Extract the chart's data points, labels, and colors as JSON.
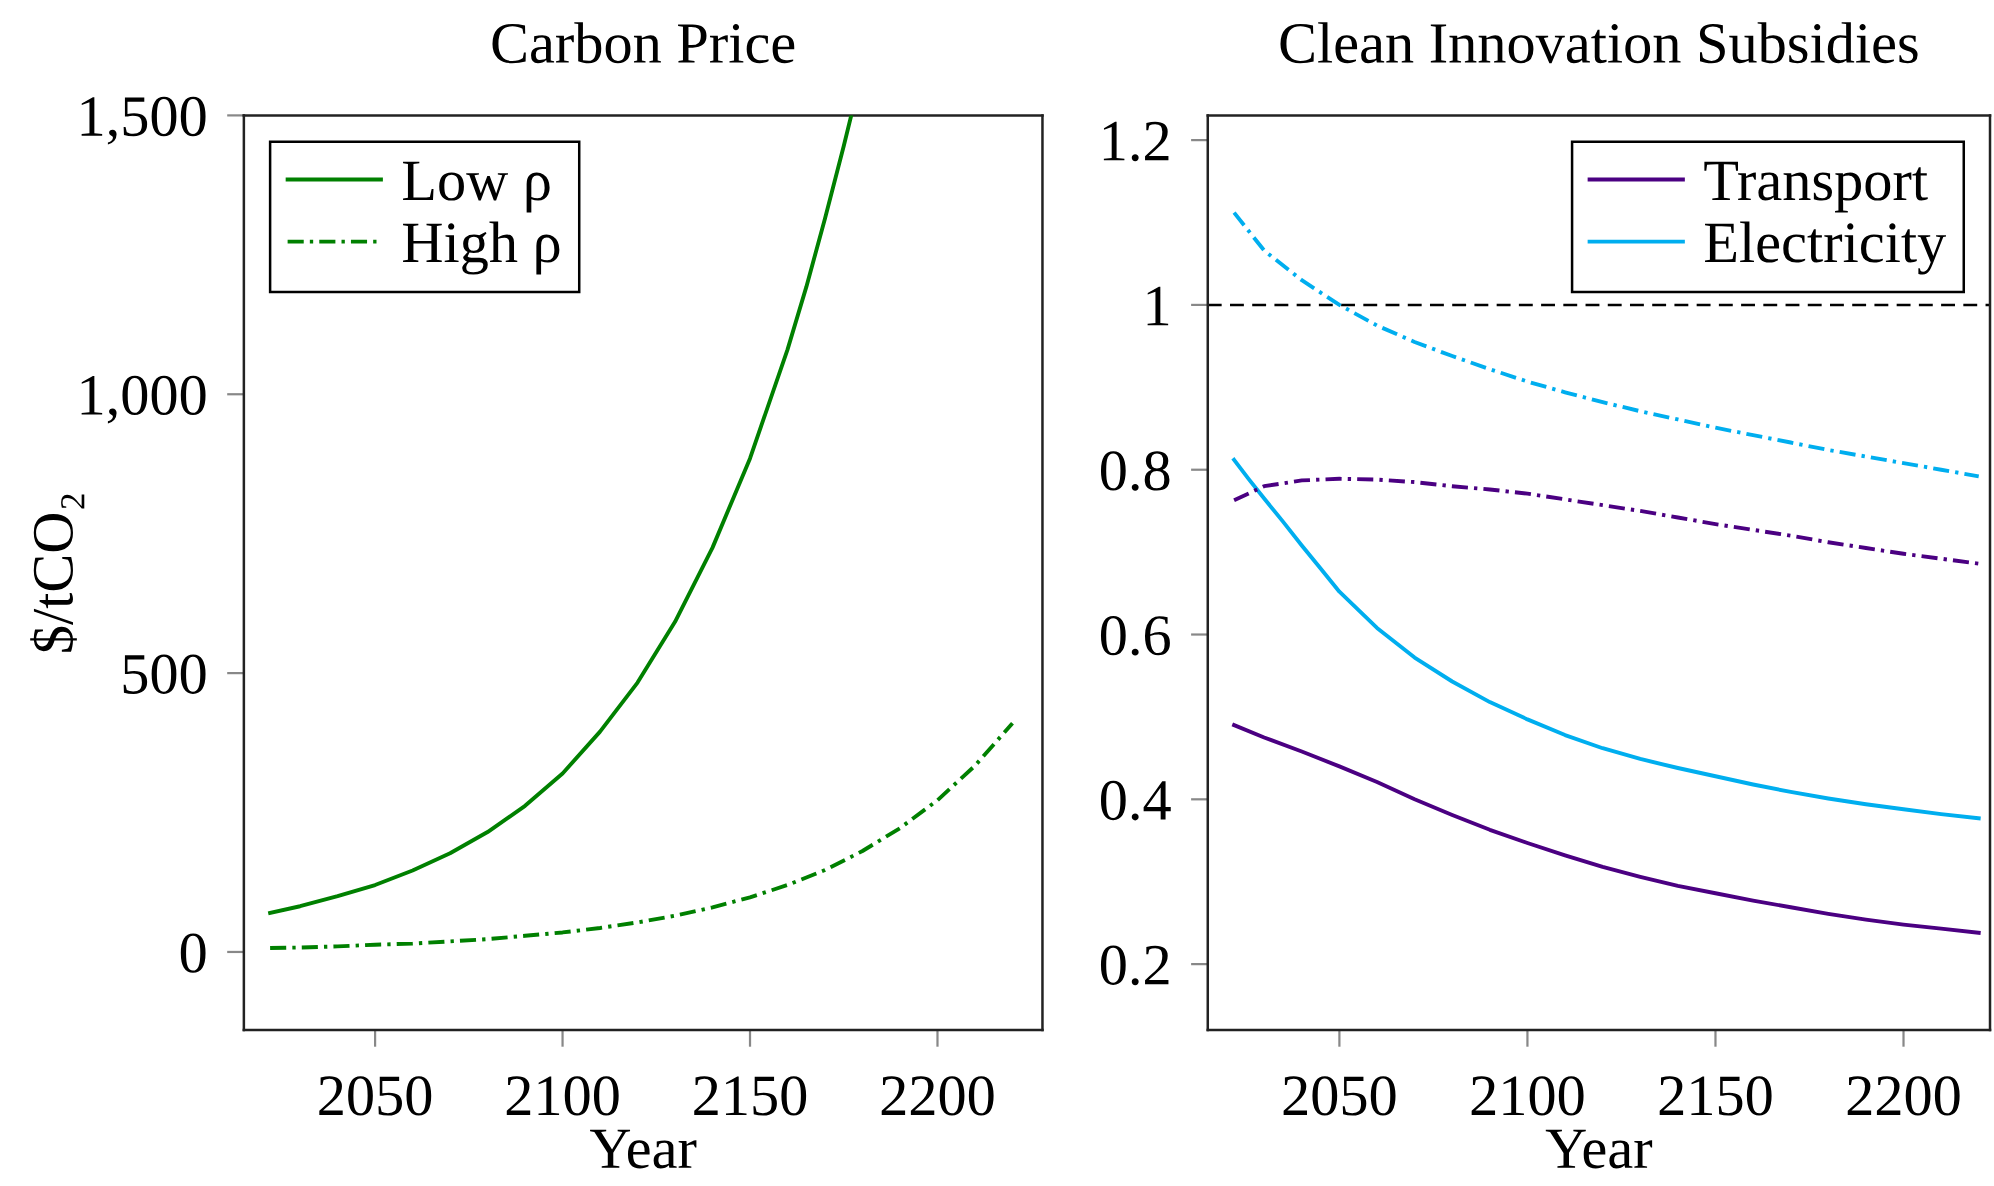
{
  "chart_data": [
    {
      "type": "line",
      "title": "Carbon Price",
      "xlabel": "Year",
      "ylabel": "$/tCO₂",
      "xlim": [
        2015,
        2228
      ],
      "xticks": [
        2050,
        2100,
        2150,
        2200
      ],
      "ylim": [
        -140,
        1500
      ],
      "yticks": [
        0,
        500,
        {
          "value": 1000,
          "label": "1,000"
        },
        {
          "value": 1500,
          "label": "1,500"
        }
      ],
      "legend": "top left",
      "series": [
        {
          "name": "Low ρ",
          "color": "#008000",
          "line_style": "solid",
          "x": [
            2022,
            2030,
            2040,
            2050,
            2060,
            2070,
            2080,
            2090,
            2100,
            2110,
            2120,
            2130,
            2140,
            2150,
            2160,
            2165,
            2170,
            2175,
            2177
          ],
          "values": [
            70,
            82,
            100,
            120,
            146,
            177,
            215,
            262,
            320,
            395,
            483,
            592,
            725,
            885,
            1080,
            1192,
            1315,
            1445,
            1500
          ]
        },
        {
          "name": "High ρ",
          "color": "#008000",
          "line_style": "dashdot",
          "x": [
            2022,
            2030,
            2040,
            2050,
            2060,
            2070,
            2080,
            2090,
            2100,
            2110,
            2120,
            2130,
            2140,
            2150,
            2160,
            2170,
            2180,
            2190,
            2200,
            2210,
            2220
          ],
          "values": [
            7,
            8,
            10,
            13,
            15,
            19,
            23,
            29,
            35,
            43,
            53,
            65,
            80,
            98,
            120,
            147,
            181,
            222,
            272,
            334,
            410
          ]
        }
      ]
    },
    {
      "type": "line",
      "title": "Clean Innovation Subsidies",
      "xlabel": "Year",
      "xlim": [
        2015,
        2223
      ],
      "xticks": [
        2050,
        2100,
        2150,
        2200
      ],
      "ylim": [
        0.12,
        1.23
      ],
      "yticks": [
        0.2,
        0.4,
        0.6,
        0.8,
        1,
        1.2
      ],
      "legend": "top right",
      "ref_lines": [
        {
          "axis": "y",
          "value": 1,
          "color": "#000000",
          "line_style": "dashed"
        }
      ],
      "series": [
        {
          "name": "Transport",
          "color": "#4b0082",
          "line_style": "solid",
          "x": [
            2022,
            2030,
            2040,
            2050,
            2060,
            2070,
            2080,
            2090,
            2100,
            2110,
            2120,
            2130,
            2140,
            2150,
            2160,
            2170,
            2180,
            2190,
            2200,
            2210,
            2220
          ],
          "values": [
            0.49,
            0.475,
            0.458,
            0.44,
            0.421,
            0.4,
            0.381,
            0.363,
            0.347,
            0.332,
            0.318,
            0.306,
            0.295,
            0.286,
            0.277,
            0.269,
            0.261,
            0.254,
            0.248,
            0.243,
            0.238
          ]
        },
        {
          "name": "Electricity",
          "color": "#00aeef",
          "line_style": "solid",
          "x": [
            2022,
            2026,
            2030,
            2035,
            2040,
            2045,
            2050,
            2060,
            2070,
            2080,
            2090,
            2100,
            2110,
            2120,
            2130,
            2140,
            2150,
            2160,
            2170,
            2180,
            2190,
            2200,
            2210,
            2220
          ],
          "values": [
            0.812,
            0.788,
            0.765,
            0.737,
            0.708,
            0.68,
            0.652,
            0.608,
            0.572,
            0.543,
            0.518,
            0.497,
            0.478,
            0.462,
            0.449,
            0.438,
            0.428,
            0.418,
            0.409,
            0.401,
            0.394,
            0.388,
            0.382,
            0.377
          ]
        },
        {
          "color": "#4b0082",
          "line_style": "dashdot",
          "x": [
            2022,
            2030,
            2040,
            2050,
            2060,
            2070,
            2080,
            2090,
            2100,
            2110,
            2120,
            2130,
            2140,
            2150,
            2160,
            2170,
            2180,
            2190,
            2200,
            2210,
            2220
          ],
          "values": [
            0.763,
            0.78,
            0.787,
            0.789,
            0.788,
            0.785,
            0.78,
            0.776,
            0.771,
            0.764,
            0.757,
            0.75,
            0.742,
            0.734,
            0.727,
            0.72,
            0.712,
            0.705,
            0.698,
            0.692,
            0.686
          ]
        },
        {
          "color": "#00aeef",
          "line_style": "dashdot",
          "x": [
            2022,
            2030,
            2040,
            2050,
            2060,
            2070,
            2080,
            2090,
            2100,
            2110,
            2120,
            2130,
            2140,
            2150,
            2160,
            2170,
            2180,
            2190,
            2200,
            2210,
            2220
          ],
          "values": [
            1.112,
            1.066,
            1.03,
            1.0,
            0.975,
            0.955,
            0.938,
            0.922,
            0.907,
            0.894,
            0.882,
            0.871,
            0.861,
            0.851,
            0.842,
            0.833,
            0.824,
            0.816,
            0.808,
            0.8,
            0.792
          ]
        }
      ]
    }
  ]
}
